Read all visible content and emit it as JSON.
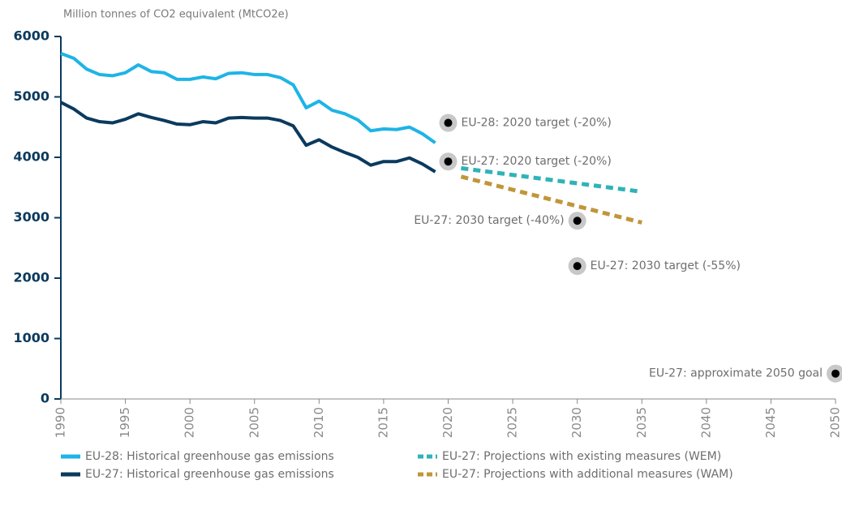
{
  "chart_data": {
    "type": "line",
    "y_label": "Million tonnes of CO2 equivalent (MtCO2e)",
    "xlim": [
      1990,
      2050
    ],
    "xticks": [
      1990,
      1995,
      2000,
      2005,
      2010,
      2015,
      2020,
      2025,
      2030,
      2035,
      2040,
      2045,
      2050
    ],
    "ylim": [
      0,
      6000
    ],
    "yticks": [
      0,
      1000,
      2000,
      3000,
      4000,
      5000,
      6000
    ],
    "series": [
      {
        "name": "EU-28: Historical greenhouse gas emissions",
        "color": "#1eb4e6",
        "dashed": false,
        "x": [
          1990,
          1991,
          1992,
          1993,
          1994,
          1995,
          1996,
          1997,
          1998,
          1999,
          2000,
          2001,
          2002,
          2003,
          2004,
          2005,
          2006,
          2007,
          2008,
          2009,
          2010,
          2011,
          2012,
          2013,
          2014,
          2015,
          2016,
          2017,
          2018,
          2019
        ],
        "values": [
          5720,
          5640,
          5460,
          5370,
          5350,
          5400,
          5530,
          5420,
          5400,
          5290,
          5290,
          5330,
          5300,
          5390,
          5400,
          5370,
          5370,
          5320,
          5200,
          4820,
          4930,
          4780,
          4720,
          4620,
          4440,
          4470,
          4460,
          4500,
          4390,
          4240
        ]
      },
      {
        "name": "EU-27: Historical greenhouse gas emissions",
        "color": "#0b3a5e",
        "dashed": false,
        "x": [
          1990,
          1991,
          1992,
          1993,
          1994,
          1995,
          1996,
          1997,
          1998,
          1999,
          2000,
          2001,
          2002,
          2003,
          2004,
          2005,
          2006,
          2007,
          2008,
          2009,
          2010,
          2011,
          2012,
          2013,
          2014,
          2015,
          2016,
          2017,
          2018,
          2019
        ],
        "values": [
          4910,
          4800,
          4650,
          4590,
          4570,
          4630,
          4720,
          4660,
          4610,
          4550,
          4540,
          4590,
          4570,
          4650,
          4660,
          4650,
          4650,
          4610,
          4520,
          4200,
          4290,
          4170,
          4080,
          4000,
          3870,
          3930,
          3930,
          3990,
          3890,
          3760
        ]
      },
      {
        "name": "EU-27: Projections with existing measures (WEM)",
        "color": "#2eb3b8",
        "dashed": true,
        "x": [
          2021,
          2035
        ],
        "values": [
          3820,
          3430
        ]
      },
      {
        "name": "EU-27: Projections with additional measures (WAM)",
        "color": "#c0963a",
        "dashed": true,
        "x": [
          2021,
          2035
        ],
        "values": [
          3680,
          2920
        ]
      }
    ],
    "points": [
      {
        "label": "EU-28: 2020 target (-20%)",
        "x": 2020,
        "value": 4570
      },
      {
        "label": "EU-27: 2020 target (-20%)",
        "x": 2020,
        "value": 3930
      },
      {
        "label": "EU-27: 2030 target (-40%)",
        "x": 2030,
        "value": 2950
      },
      {
        "label": "EU-27: 2030 target (-55%)",
        "x": 2030,
        "value": 2200
      },
      {
        "label": "EU-27: approximate 2050 goal",
        "x": 2050,
        "value": 420
      }
    ]
  }
}
